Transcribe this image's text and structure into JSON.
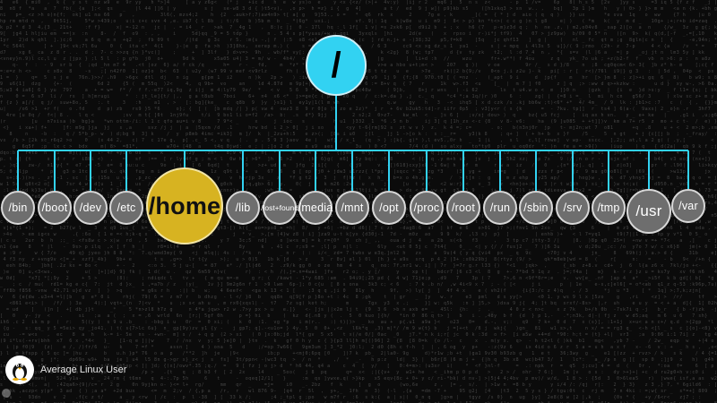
{
  "root": {
    "label": "/"
  },
  "directories": [
    {
      "label": "/bin"
    },
    {
      "label": "/boot"
    },
    {
      "label": "/dev"
    },
    {
      "label": "/etc"
    },
    {
      "label": "/home"
    },
    {
      "label": "/lib"
    },
    {
      "label": "/lost+found"
    },
    {
      "label": "/media"
    },
    {
      "label": "/mnt"
    },
    {
      "label": "/opt"
    },
    {
      "label": "/proc"
    },
    {
      "label": "/root"
    },
    {
      "label": "/run"
    },
    {
      "label": "/sbin"
    },
    {
      "label": "/srv"
    },
    {
      "label": "/tmp"
    },
    {
      "label": "/usr"
    },
    {
      "label": "/var"
    }
  ],
  "user": {
    "name": "Average Linux User",
    "logo_icon": "tux-penguin-icon"
  },
  "colors": {
    "root_fill": "#32d2f2",
    "connector": "#32d2f2",
    "dir_fill": "#6e6e6e",
    "highlight_fill": "#d7b321",
    "background": "#0b0b0b"
  }
}
